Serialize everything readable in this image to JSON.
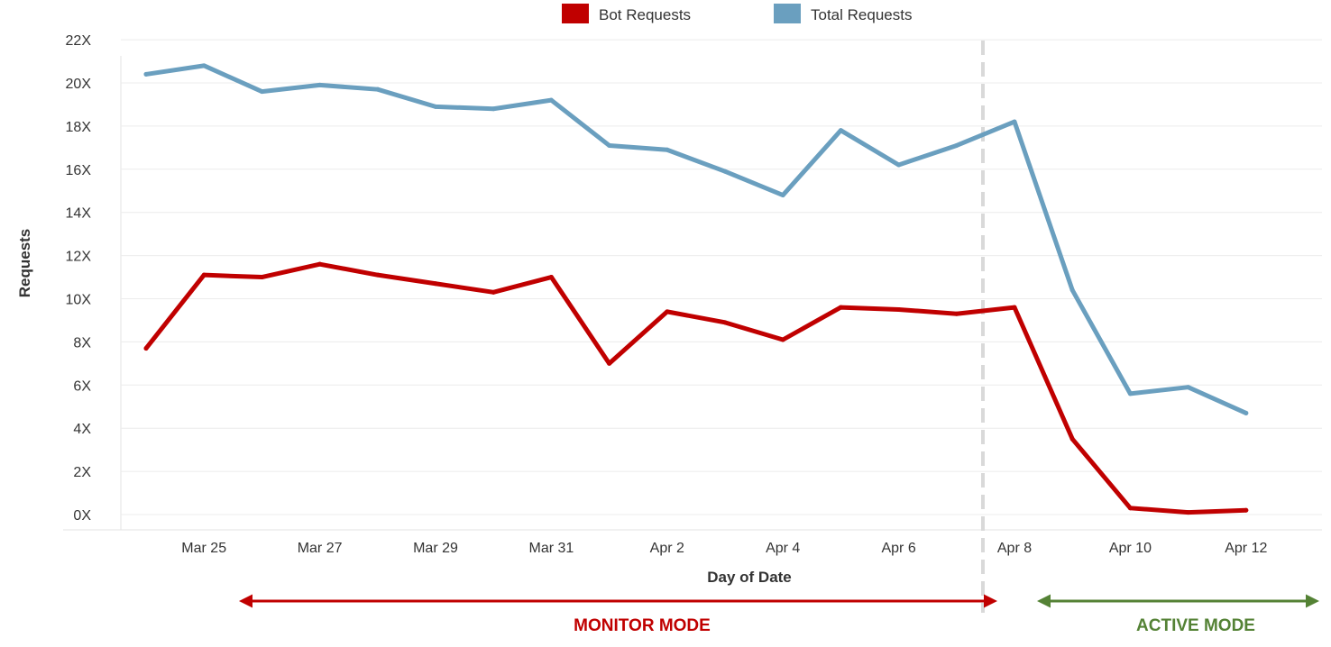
{
  "chart_data": {
    "type": "line",
    "xlabel": "Day of Date",
    "ylabel": "Requests",
    "y_unit_suffix": "X",
    "ylim": [
      0,
      22
    ],
    "yticks": [
      0,
      2,
      4,
      6,
      8,
      10,
      12,
      14,
      16,
      18,
      20,
      22
    ],
    "xticks": [
      "Mar 25",
      "Mar 27",
      "Mar 29",
      "Mar 31",
      "Apr 2",
      "Apr 4",
      "Apr 6",
      "Apr 8",
      "Apr 10",
      "Apr 12"
    ],
    "x": [
      "Mar 24",
      "Mar 25",
      "Mar 26",
      "Mar 27",
      "Mar 28",
      "Mar 29",
      "Mar 30",
      "Mar 31",
      "Apr 1",
      "Apr 2",
      "Apr 3",
      "Apr 4",
      "Apr 5",
      "Apr 6",
      "Apr 7",
      "Apr 8",
      "Apr 9",
      "Apr 10",
      "Apr 11",
      "Apr 12",
      "Apr 13"
    ],
    "grid": true,
    "legend_position": "top-center",
    "series": [
      {
        "name": "Bot Requests",
        "color": "#c00000",
        "values": [
          7.7,
          11.1,
          11.0,
          11.6,
          11.1,
          10.7,
          10.3,
          11.0,
          7.0,
          9.4,
          8.9,
          8.1,
          9.6,
          9.5,
          9.3,
          9.6,
          3.5,
          0.3,
          0.1,
          0.2,
          null
        ]
      },
      {
        "name": "Total Requests",
        "color": "#6a9fbf",
        "values": [
          20.4,
          20.8,
          19.6,
          19.9,
          19.7,
          18.9,
          18.8,
          19.2,
          17.1,
          16.9,
          15.9,
          14.8,
          17.8,
          16.2,
          17.1,
          18.2,
          10.4,
          5.6,
          5.9,
          4.7,
          null
        ]
      }
    ],
    "annotations": {
      "divider_at": "Apr 8",
      "monitor_mode": {
        "label": "MONITOR MODE",
        "color": "#c00000"
      },
      "active_mode": {
        "label": "ACTIVE MODE",
        "color": "#548235"
      }
    }
  }
}
